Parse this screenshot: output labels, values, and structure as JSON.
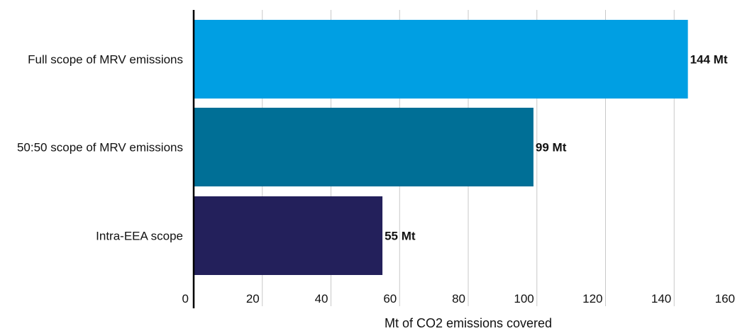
{
  "chart_data": {
    "type": "bar",
    "orientation": "horizontal",
    "title": "",
    "xlabel": "Mt of CO2 emissions covered",
    "ylabel": "",
    "xlim": [
      0,
      160
    ],
    "x_ticks": [
      0,
      20,
      40,
      60,
      80,
      100,
      120,
      140,
      160
    ],
    "grid": "vertical",
    "legend": "none",
    "categories": [
      "Full scope of MRV emissions",
      "50:50 scope of MRV emissions",
      "Intra-EEA scope"
    ],
    "values": [
      144,
      99,
      55
    ],
    "value_labels": [
      "144 Mt",
      "99 Mt",
      "55 Mt"
    ],
    "colors": [
      "#009fe3",
      "#006f96",
      "#23205b"
    ]
  },
  "colors": {
    "axis": "#000000",
    "grid": "#c8c8c8",
    "text": "#111111",
    "background": "#ffffff"
  }
}
